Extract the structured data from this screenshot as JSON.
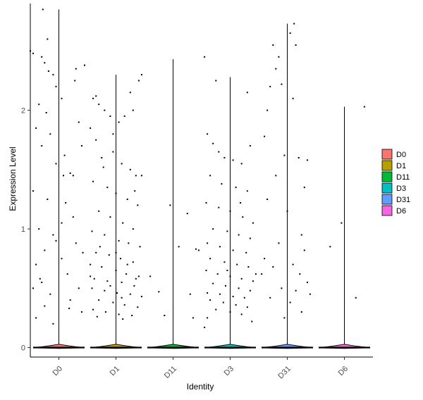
{
  "chart_data": {
    "type": "violin",
    "xlabel": "Identity",
    "ylabel": "Expression Level",
    "ylim": [
      -0.08,
      2.9
    ],
    "yticks": [
      0,
      1,
      2
    ],
    "categories": [
      "D0",
      "D1",
      "D11",
      "D3",
      "D31",
      "D6"
    ],
    "colors": {
      "D0": "#F8766D",
      "D1": "#B79F00",
      "D11": "#00BA38",
      "D3": "#00BFC4",
      "D31": "#619CFF",
      "D6": "#F564E3"
    },
    "violins": [
      {
        "name": "D0",
        "max": 2.85,
        "zero_fraction": 0.8
      },
      {
        "name": "D1",
        "max": 2.3,
        "zero_fraction": 0.55
      },
      {
        "name": "D11",
        "max": 2.43,
        "zero_fraction": 0.97
      },
      {
        "name": "D3",
        "max": 2.28,
        "zero_fraction": 0.65
      },
      {
        "name": "D31",
        "max": 2.73,
        "zero_fraction": 0.85
      },
      {
        "name": "D6",
        "max": 2.03,
        "zero_fraction": 0.98
      }
    ],
    "points": {
      "D0": [
        [
          -0.45,
          2.48
        ],
        [
          -0.3,
          2.45
        ],
        [
          -0.25,
          2.4
        ],
        [
          -0.1,
          2.3
        ],
        [
          -0.05,
          2.2
        ],
        [
          0.05,
          2.1
        ],
        [
          -0.35,
          2.05
        ],
        [
          -0.22,
          1.98
        ],
        [
          -0.4,
          1.85
        ],
        [
          -0.15,
          1.8
        ],
        [
          -0.3,
          1.7
        ],
        [
          0.1,
          1.62
        ],
        [
          -0.05,
          1.55
        ],
        [
          0.2,
          1.47
        ],
        [
          -0.45,
          1.32
        ],
        [
          -0.2,
          1.25
        ],
        [
          0.25,
          1.1
        ],
        [
          -0.35,
          1.0
        ],
        [
          -0.1,
          0.95
        ],
        [
          0.3,
          0.88
        ],
        [
          -0.25,
          0.82
        ],
        [
          0.05,
          0.75
        ],
        [
          -0.4,
          0.7
        ],
        [
          0.15,
          0.62
        ],
        [
          -0.3,
          0.55
        ],
        [
          0.35,
          0.5
        ],
        [
          -0.15,
          0.45
        ],
        [
          0.2,
          0.4
        ],
        [
          -0.25,
          0.35
        ],
        [
          0.4,
          0.3
        ],
        [
          -0.4,
          0.25
        ],
        [
          -0.1,
          0.2
        ],
        [
          0.3,
          2.35
        ],
        [
          0.45,
          2.38
        ],
        [
          0.35,
          1.9
        ],
        [
          0.4,
          1.7
        ],
        [
          0.25,
          1.45
        ],
        [
          -0.5,
          2.5
        ],
        [
          -0.2,
          2.6
        ],
        [
          -0.28,
          2.85
        ],
        [
          0.12,
          1.22
        ],
        [
          0.05,
          1.05
        ],
        [
          -0.05,
          0.9
        ],
        [
          0.42,
          0.8
        ],
        [
          -0.33,
          0.58
        ],
        [
          0.18,
          0.33
        ],
        [
          -0.45,
          0.5
        ],
        [
          0.28,
          2.25
        ],
        [
          -0.18,
          2.33
        ],
        [
          0.08,
          1.45
        ]
      ],
      "D1": [
        [
          -0.4,
          2.1
        ],
        [
          -0.3,
          2.05
        ],
        [
          -0.2,
          2.0
        ],
        [
          -0.1,
          1.95
        ],
        [
          0.05,
          1.9
        ],
        [
          0.15,
          1.95
        ],
        [
          0.3,
          2.0
        ],
        [
          0.4,
          2.25
        ],
        [
          -0.45,
          1.85
        ],
        [
          -0.35,
          1.75
        ],
        [
          -0.25,
          1.6
        ],
        [
          -0.05,
          1.65
        ],
        [
          0.1,
          1.55
        ],
        [
          0.25,
          1.5
        ],
        [
          0.35,
          1.45
        ],
        [
          -0.4,
          1.4
        ],
        [
          -0.15,
          1.35
        ],
        [
          0.0,
          1.3
        ],
        [
          0.2,
          1.25
        ],
        [
          0.38,
          1.2
        ],
        [
          -0.3,
          1.15
        ],
        [
          -0.1,
          1.1
        ],
        [
          0.12,
          1.05
        ],
        [
          0.3,
          1.0
        ],
        [
          -0.42,
          0.98
        ],
        [
          -0.2,
          0.95
        ],
        [
          0.05,
          0.9
        ],
        [
          0.22,
          0.88
        ],
        [
          0.42,
          0.85
        ],
        [
          -0.35,
          0.8
        ],
        [
          -0.12,
          0.78
        ],
        [
          0.08,
          0.75
        ],
        [
          0.3,
          0.72
        ],
        [
          -0.45,
          0.7
        ],
        [
          -0.25,
          0.68
        ],
        [
          0.0,
          0.65
        ],
        [
          0.18,
          0.62
        ],
        [
          0.4,
          0.6
        ],
        [
          -0.38,
          0.58
        ],
        [
          -0.15,
          0.56
        ],
        [
          0.1,
          0.55
        ],
        [
          0.32,
          0.52
        ],
        [
          -0.42,
          0.5
        ],
        [
          -0.2,
          0.48
        ],
        [
          0.02,
          0.46
        ],
        [
          0.25,
          0.45
        ],
        [
          0.45,
          0.43
        ],
        [
          -0.3,
          0.4
        ],
        [
          -0.05,
          0.38
        ],
        [
          0.15,
          0.36
        ],
        [
          0.38,
          0.34
        ],
        [
          -0.4,
          0.32
        ],
        [
          -0.18,
          0.3
        ],
        [
          0.05,
          0.28
        ],
        [
          0.28,
          0.27
        ],
        [
          -0.33,
          0.26
        ],
        [
          0.12,
          0.24
        ],
        [
          -0.1,
          0.52
        ],
        [
          0.2,
          0.7
        ],
        [
          -0.28,
          0.85
        ],
        [
          0.33,
          1.32
        ],
        [
          -0.05,
          1.8
        ],
        [
          0.25,
          2.15
        ],
        [
          -0.35,
          2.12
        ],
        [
          0.45,
          2.3
        ],
        [
          -0.22,
          1.52
        ],
        [
          0.1,
          0.42
        ],
        [
          -0.45,
          0.6
        ],
        [
          0.35,
          0.58
        ],
        [
          0.0,
          0.8
        ]
      ],
      "D11": [
        [
          -0.4,
          0.6
        ],
        [
          -0.25,
          0.47
        ],
        [
          -0.15,
          0.27
        ],
        [
          0.1,
          0.85
        ],
        [
          0.25,
          1.13
        ],
        [
          0.3,
          0.45
        ],
        [
          0.45,
          0.82
        ],
        [
          0.35,
          0.25
        ],
        [
          -0.05,
          1.2
        ],
        [
          0.55,
          2.45
        ],
        [
          -0.55,
          1.45
        ],
        [
          0.4,
          0.83
        ]
      ],
      "D3": [
        [
          -0.4,
          1.8
        ],
        [
          -0.3,
          1.72
        ],
        [
          -0.2,
          1.65
        ],
        [
          -0.1,
          1.6
        ],
        [
          0.05,
          1.58
        ],
        [
          0.2,
          1.55
        ],
        [
          0.35,
          1.7
        ],
        [
          -0.35,
          1.45
        ],
        [
          -0.15,
          1.38
        ],
        [
          0.1,
          1.35
        ],
        [
          0.3,
          1.32
        ],
        [
          -0.42,
          1.22
        ],
        [
          -0.2,
          1.18
        ],
        [
          0.0,
          1.15
        ],
        [
          0.22,
          1.1
        ],
        [
          0.4,
          1.05
        ],
        [
          -0.3,
          1.0
        ],
        [
          -0.05,
          0.98
        ],
        [
          0.15,
          0.95
        ],
        [
          0.35,
          0.92
        ],
        [
          -0.4,
          0.88
        ],
        [
          -0.18,
          0.85
        ],
        [
          0.05,
          0.82
        ],
        [
          0.28,
          0.8
        ],
        [
          -0.35,
          0.75
        ],
        [
          -0.1,
          0.72
        ],
        [
          0.12,
          0.7
        ],
        [
          0.32,
          0.68
        ],
        [
          -0.42,
          0.65
        ],
        [
          -0.22,
          0.62
        ],
        [
          0.0,
          0.6
        ],
        [
          0.2,
          0.58
        ],
        [
          0.4,
          0.56
        ],
        [
          -0.3,
          0.54
        ],
        [
          -0.08,
          0.52
        ],
        [
          0.15,
          0.5
        ],
        [
          0.35,
          0.48
        ],
        [
          -0.4,
          0.46
        ],
        [
          -0.18,
          0.45
        ],
        [
          0.05,
          0.43
        ],
        [
          0.25,
          0.42
        ],
        [
          -0.35,
          0.4
        ],
        [
          -0.12,
          0.38
        ],
        [
          0.1,
          0.36
        ],
        [
          0.3,
          0.34
        ],
        [
          -0.25,
          0.32
        ],
        [
          0.0,
          0.3
        ],
        [
          0.2,
          0.28
        ],
        [
          -0.4,
          0.25
        ],
        [
          0.38,
          0.22
        ],
        [
          -0.45,
          0.17
        ],
        [
          0.18,
          1.22
        ],
        [
          -0.25,
          2.25
        ],
        [
          0.3,
          2.15
        ],
        [
          -0.05,
          0.65
        ],
        [
          0.45,
          0.62
        ]
      ],
      "D31": [
        [
          -0.25,
          2.55
        ],
        [
          -0.15,
          2.45
        ],
        [
          -0.2,
          2.35
        ],
        [
          -0.1,
          2.22
        ],
        [
          0.05,
          2.65
        ],
        [
          0.15,
          2.55
        ],
        [
          -0.3,
          2.2
        ],
        [
          0.1,
          2.1
        ],
        [
          -0.4,
          1.78
        ],
        [
          -0.05,
          1.62
        ],
        [
          0.2,
          1.6
        ],
        [
          0.35,
          1.58
        ],
        [
          -0.2,
          1.45
        ],
        [
          0.3,
          1.35
        ],
        [
          -0.35,
          1.25
        ],
        [
          0.0,
          1.15
        ],
        [
          0.25,
          0.95
        ],
        [
          -0.15,
          0.88
        ],
        [
          0.3,
          0.82
        ],
        [
          -0.4,
          0.75
        ],
        [
          0.1,
          0.7
        ],
        [
          -0.25,
          0.68
        ],
        [
          0.22,
          0.62
        ],
        [
          -0.45,
          0.62
        ],
        [
          0.35,
          0.55
        ],
        [
          -0.1,
          0.5
        ],
        [
          0.15,
          0.48
        ],
        [
          0.4,
          0.45
        ],
        [
          -0.3,
          0.42
        ],
        [
          0.05,
          0.38
        ],
        [
          0.25,
          0.3
        ],
        [
          -0.05,
          0.25
        ],
        [
          -0.35,
          2.0
        ],
        [
          0.12,
          2.73
        ]
      ],
      "D6": [
        [
          -0.25,
          0.85
        ],
        [
          -0.05,
          1.05
        ],
        [
          0.2,
          0.42
        ],
        [
          0.35,
          2.03
        ]
      ]
    }
  },
  "legend": {
    "items": [
      {
        "label": "D0",
        "color": "#F8766D"
      },
      {
        "label": "D1",
        "color": "#B79F00"
      },
      {
        "label": "D11",
        "color": "#00BA38"
      },
      {
        "label": "D3",
        "color": "#00BFC4"
      },
      {
        "label": "D31",
        "color": "#619CFF"
      },
      {
        "label": "D6",
        "color": "#F564E3"
      }
    ]
  }
}
